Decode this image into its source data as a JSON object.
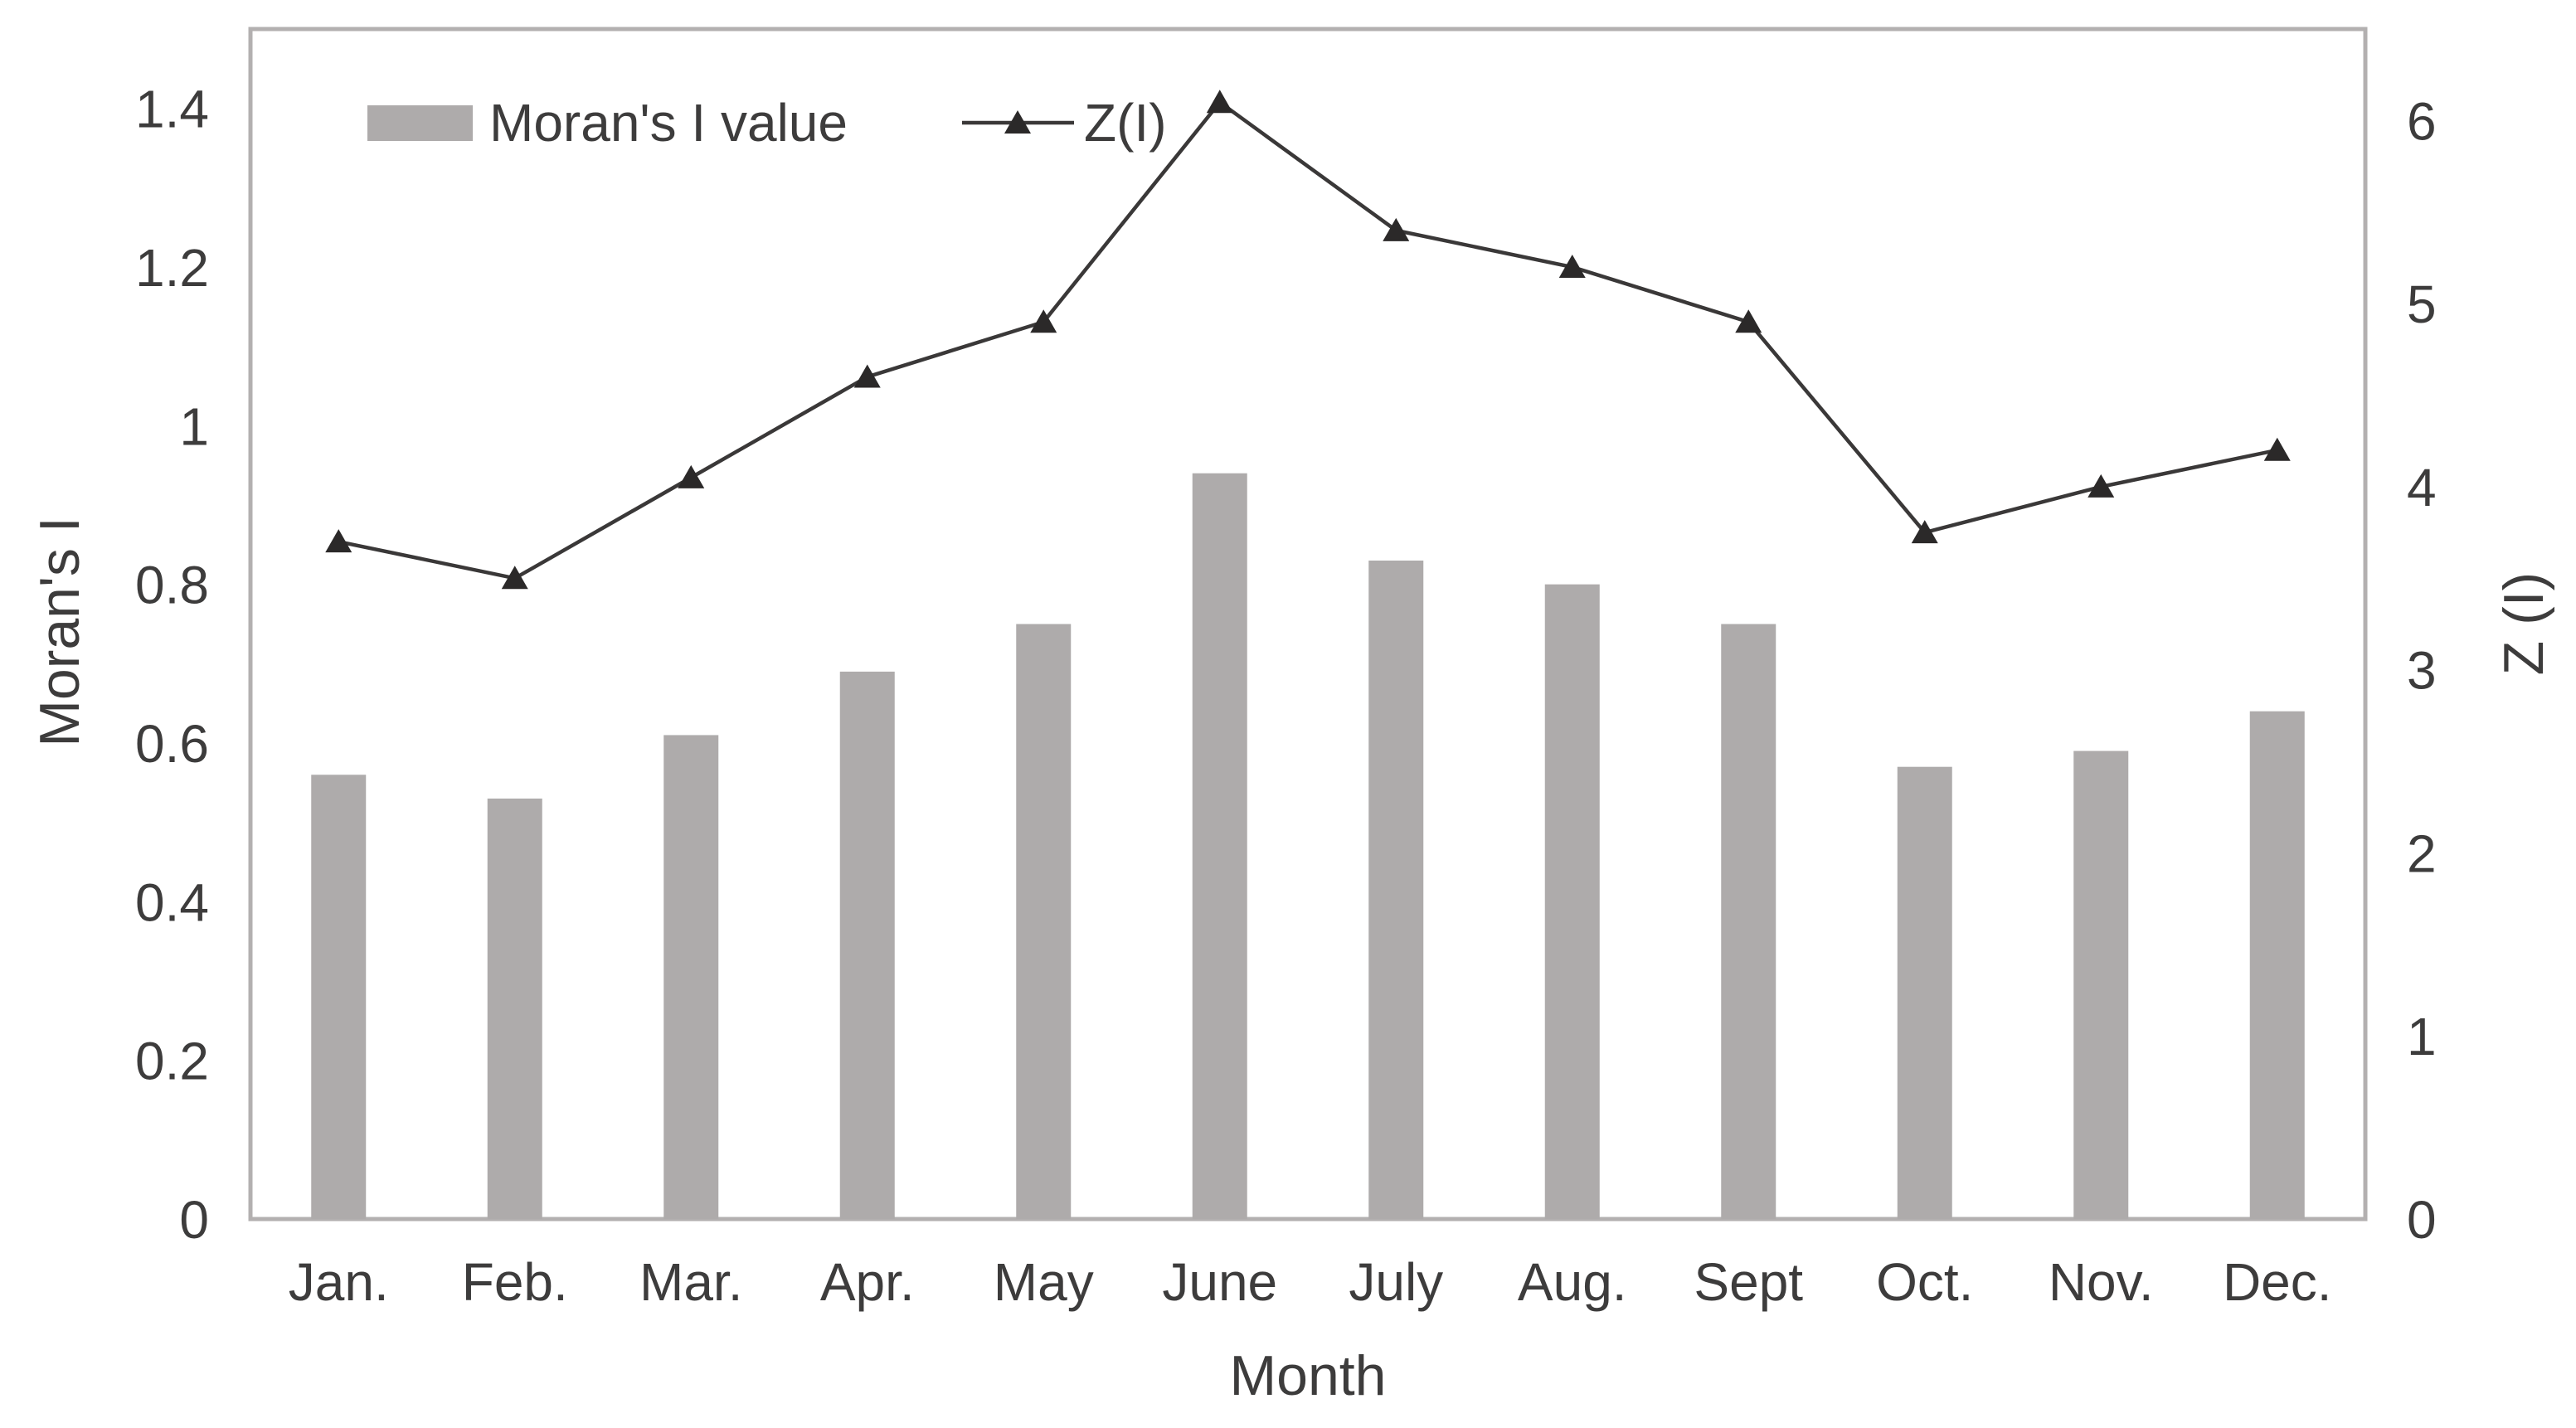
{
  "chart_data": {
    "type": "combo-bar-line",
    "categories": [
      "Jan.",
      "Feb.",
      "Mar.",
      "Apr.",
      "May",
      "June",
      "July",
      "Aug.",
      "Sept",
      "Oct.",
      "Nov.",
      "Dec."
    ],
    "series": [
      {
        "name": "Moran's I value",
        "type": "bar",
        "axis": "left",
        "values": [
          0.56,
          0.53,
          0.61,
          0.69,
          0.75,
          0.94,
          0.83,
          0.8,
          0.75,
          0.57,
          0.59,
          0.64
        ]
      },
      {
        "name": "Z(I)",
        "type": "line",
        "marker": "filled-triangle-up",
        "axis": "right",
        "values": [
          3.7,
          3.5,
          4.05,
          4.6,
          4.9,
          6.1,
          5.4,
          5.2,
          4.9,
          3.75,
          4.0,
          4.2
        ]
      }
    ],
    "title": "",
    "xlabel": "Month",
    "ylabel_left": "Moran's I",
    "ylabel_right": "Z (I)",
    "left_axis": {
      "min": 0,
      "max": 1.5,
      "tick_step": 0.2,
      "ticks": [
        "0",
        "0.2",
        "0.4",
        "0.6",
        "0.8",
        "1",
        "1.2",
        "1.4"
      ]
    },
    "right_axis": {
      "min": 0,
      "max": 6.5,
      "tick_step": 1,
      "ticks": [
        "0",
        "1",
        "2",
        "3",
        "4",
        "5",
        "6"
      ]
    },
    "grid": false,
    "legend_position": "inside-top-left",
    "colors": {
      "bar": "#aeabab",
      "line": "#3a3838",
      "marker": "#2b2929",
      "plot_border": "#b3b0b0",
      "text": "#3d3c3c",
      "background": "#ffffff"
    }
  }
}
